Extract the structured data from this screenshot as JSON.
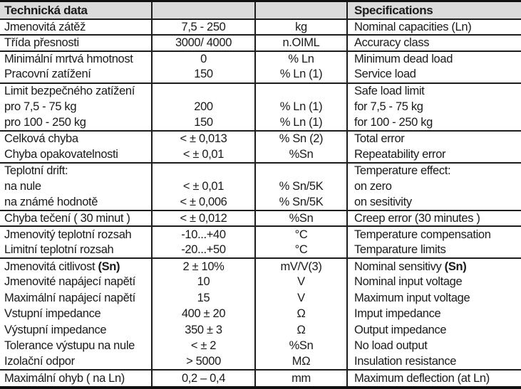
{
  "header": {
    "title_cz": "Technická data",
    "title_en": "Specifications"
  },
  "styles": {
    "header_background": "#dbdbdb",
    "border_color": "#1c1c1c",
    "text_color": "#1a1a1a"
  },
  "table": {
    "columns": [
      "parameter_cz",
      "value",
      "unit",
      "parameter_en"
    ],
    "rows": [
      {
        "cz": "Jmenovitá zátěž",
        "value": "7,5 - 250",
        "unit": "kg",
        "en": "Nominal capacities (Ln)",
        "group_end": true
      },
      {
        "cz": "Třída přesnosti",
        "value": "3000/ 4000",
        "unit": "n.OIML",
        "en": "Accuracy class",
        "group_end": true
      },
      {
        "cz": "Minimální mrtvá hmotnost",
        "value": "0",
        "unit": "% Ln",
        "en": "Minimum dead load",
        "group_end": false
      },
      {
        "cz": "Pracovní zatížení",
        "value": "150",
        "unit": "% Ln (1)",
        "en": "Service load",
        "group_end": true
      },
      {
        "cz": "Limit bezpečného zatížení",
        "value": "",
        "unit": "",
        "en": "Safe load limit",
        "group_end": false
      },
      {
        "cz": "pro 7,5 - 75 kg",
        "value": "200",
        "unit": "% Ln (1)",
        "en": "for 7,5 - 75 kg",
        "group_end": false
      },
      {
        "cz": "pro 100 - 250 kg",
        "value": "150",
        "unit": "% Ln (1)",
        "en": "for 100 - 250 kg",
        "group_end": true
      },
      {
        "cz": "Celková chyba",
        "value": "< ± 0,013",
        "unit": "% Sn (2)",
        "en": "Total error",
        "group_end": false
      },
      {
        "cz": "Chyba opakovatelnosti",
        "value": "< ± 0,01",
        "unit": "%Sn",
        "en": "Repeatability error",
        "group_end": true
      },
      {
        "cz": "Teplotní drift:",
        "value": "",
        "unit": "",
        "en": "Temperature effect:",
        "group_end": false
      },
      {
        "cz": "na nule",
        "value": "< ± 0,01",
        "unit": "% Sn/5K",
        "en": "on zero",
        "group_end": false
      },
      {
        "cz": "na známé hodnotě",
        "value": "< ± 0,006",
        "unit": "% Sn/5K",
        "en": "on sesitivity",
        "group_end": true
      },
      {
        "cz": "Chyba tečení ( 30 minut )",
        "value": "< ± 0,012",
        "unit": "%Sn",
        "en": "Creep error (30 minutes )",
        "group_end": true
      },
      {
        "cz": "Jmenovitý teplotní rozsah",
        "value": "-10...+40",
        "unit": "°C",
        "en": "Temperature compensation",
        "group_end": false
      },
      {
        "cz": "Limitní teplotní rozsah",
        "value": "-20...+50",
        "unit": "°C",
        "en": "Temparature limits",
        "group_end": true
      },
      {
        "cz": "Jmenovitá citlivost ",
        "cz_bold": "(Sn)",
        "value": "2 ± 10%",
        "unit": "mV/V(3)",
        "en": "Nominal sensitivy ",
        "en_bold": "(Sn)",
        "group_end": false
      },
      {
        "cz": "Jmenovité napájecí napětí",
        "value": "10",
        "unit": "V",
        "en": "Nominal input voltage",
        "group_end": false
      },
      {
        "cz": "Maximální napájecí napětí",
        "value": "15",
        "unit": "V",
        "en": "Maximum input voltage",
        "group_end": false
      },
      {
        "cz": "Vstupní impedance",
        "value": "400 ± 20",
        "unit": "Ω",
        "en": "Imput impedance",
        "group_end": false
      },
      {
        "cz": "Výstupní impedance",
        "value": "350 ± 3",
        "unit": "Ω",
        "en": "Output impedance",
        "group_end": false
      },
      {
        "cz": "Tolerance výstupu na nule",
        "value": "< ± 2",
        "unit": "%Sn",
        "en": "No load output",
        "group_end": false
      },
      {
        "cz": "Izolační odpor",
        "value": "> 5000",
        "unit": "MΩ",
        "en": "Insulation resistance",
        "group_end": true
      },
      {
        "cz": "Maximální ohyb ( na Ln)",
        "value": "0,2 – 0,4",
        "unit": "mm",
        "en": "Maximum deflection (at Ln)",
        "group_end": false
      }
    ]
  }
}
